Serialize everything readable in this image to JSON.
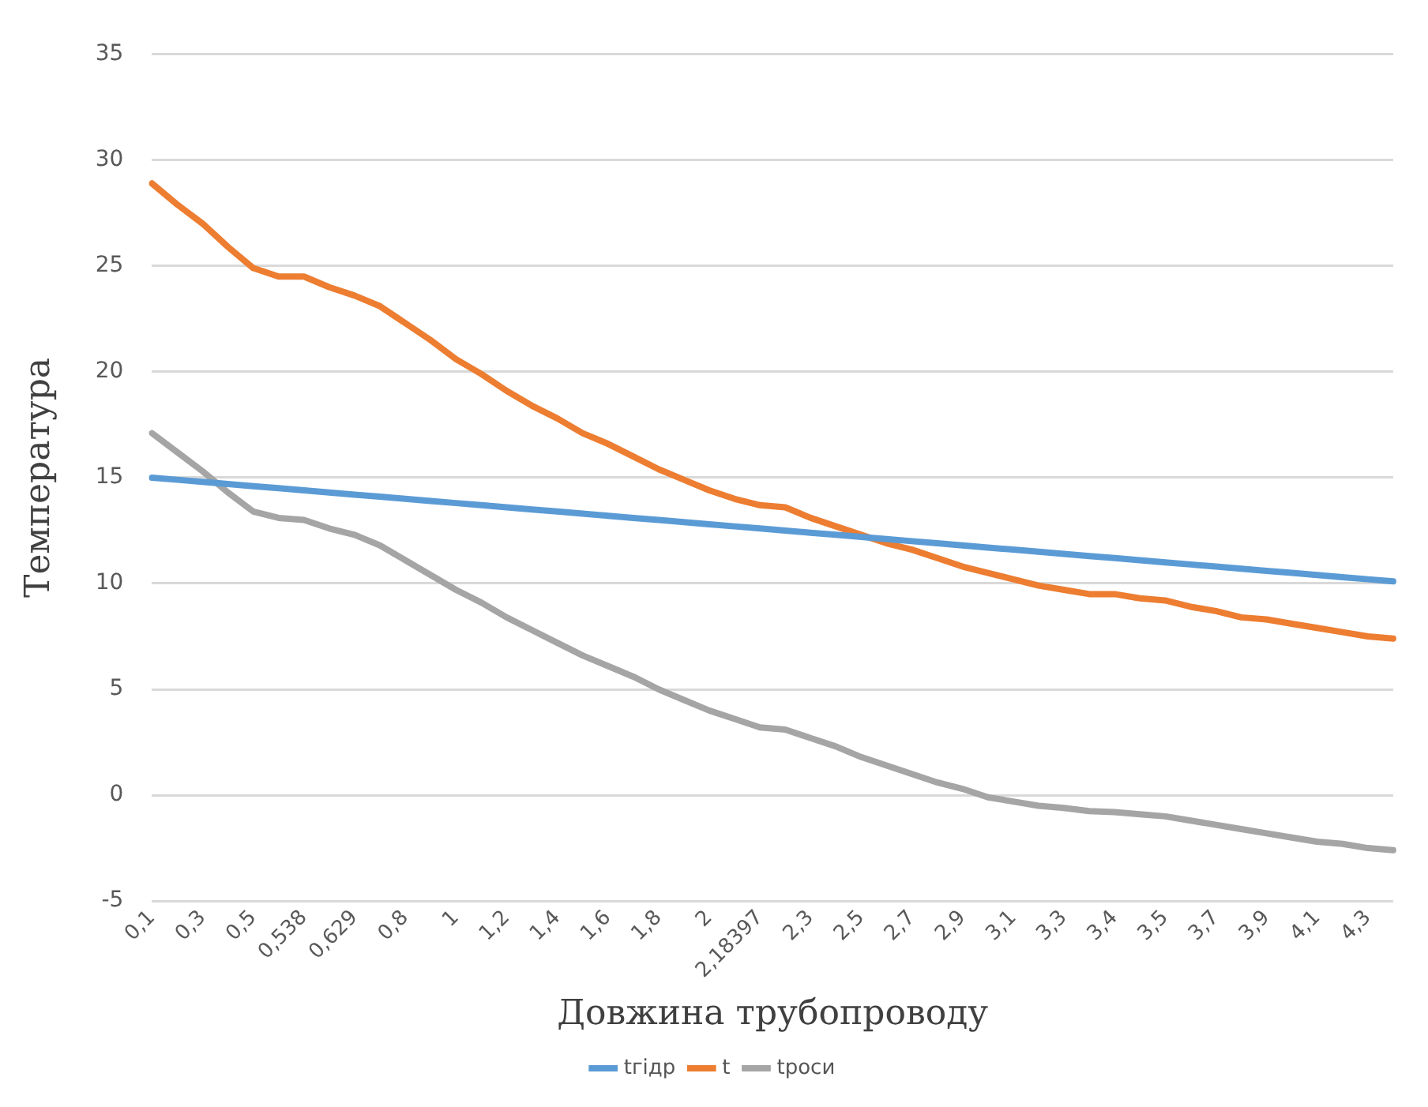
{
  "chart_data": {
    "type": "line",
    "xlabel": "Довжина трубопроводу",
    "ylabel": "Температура",
    "categories": [
      "0,1",
      null,
      "0,3",
      null,
      "0,5",
      null,
      "0,538",
      null,
      "0,629",
      null,
      "0,8",
      null,
      "1",
      null,
      "1,2",
      null,
      "1,4",
      null,
      "1,6",
      null,
      "1,8",
      null,
      "2",
      null,
      "2,18397",
      null,
      "2,3",
      null,
      "2,5",
      null,
      "2,7",
      null,
      "2,9",
      null,
      "3,1",
      null,
      "3,3",
      null,
      "3,4",
      null,
      "3,5",
      null,
      "3,7",
      null,
      "3,9",
      null,
      "4,1",
      null,
      "4,3",
      null
    ],
    "series": [
      {
        "name": "tгідр",
        "color": "#5b9bd5",
        "values": [
          15.0,
          14.9,
          14.8,
          14.7,
          14.6,
          14.5,
          14.4,
          14.3,
          14.2,
          14.1,
          14.0,
          13.9,
          13.8,
          13.7,
          13.6,
          13.5,
          13.4,
          13.3,
          13.2,
          13.1,
          13.0,
          12.9,
          12.8,
          12.7,
          12.6,
          12.5,
          12.4,
          12.3,
          12.2,
          12.1,
          12.0,
          11.9,
          11.8,
          11.7,
          11.6,
          11.5,
          11.4,
          11.3,
          11.2,
          11.1,
          11.0,
          10.9,
          10.8,
          10.7,
          10.6,
          10.5,
          10.4,
          10.3,
          10.2,
          10.1
        ]
      },
      {
        "name": "t",
        "color": "#ed7d31",
        "values": [
          28.9,
          27.9,
          27.0,
          25.9,
          24.9,
          24.5,
          24.5,
          24.0,
          23.6,
          23.1,
          22.3,
          21.5,
          20.6,
          19.9,
          19.1,
          18.4,
          17.8,
          17.1,
          16.6,
          16.0,
          15.4,
          14.9,
          14.4,
          14.0,
          13.7,
          13.6,
          13.1,
          12.7,
          12.3,
          11.9,
          11.6,
          11.2,
          10.8,
          10.5,
          10.2,
          9.9,
          9.7,
          9.5,
          9.5,
          9.3,
          9.2,
          8.9,
          8.7,
          8.4,
          8.3,
          8.1,
          7.9,
          7.7,
          7.5,
          7.4
        ]
      },
      {
        "name": "tроси",
        "color": "#a5a5a5",
        "values": [
          17.1,
          16.2,
          15.3,
          14.3,
          13.4,
          13.1,
          13.0,
          12.6,
          12.3,
          11.8,
          11.1,
          10.4,
          9.7,
          9.1,
          8.4,
          7.8,
          7.2,
          6.6,
          6.1,
          5.6,
          5.0,
          4.5,
          4.0,
          3.6,
          3.2,
          3.1,
          2.7,
          2.3,
          1.8,
          1.4,
          1.0,
          0.6,
          0.3,
          -0.1,
          -0.3,
          -0.5,
          -0.6,
          -0.75,
          -0.8,
          -0.9,
          -1.0,
          -1.2,
          -1.4,
          -1.6,
          -1.8,
          -2.0,
          -2.2,
          -2.3,
          -2.5,
          -2.6
        ]
      }
    ],
    "ylim": [
      -5,
      35
    ],
    "yticks": [
      -5,
      0,
      5,
      10,
      15,
      20,
      25,
      30,
      35
    ],
    "grid": "y",
    "legend": "bottom",
    "marker": "none",
    "line_style": "solid"
  }
}
